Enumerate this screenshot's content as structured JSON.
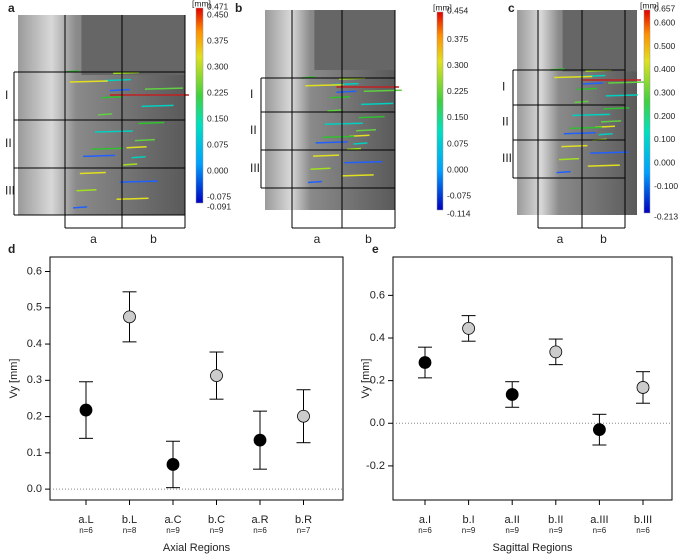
{
  "panels": [
    {
      "letter": "a",
      "unit": "[mm]",
      "colorbar": [
        "0.471",
        "0.450",
        "0.375",
        "0.300",
        "0.225",
        "0.150",
        "0.075",
        "0.000",
        "-0.075",
        "-0.091"
      ],
      "rows": [
        "I",
        "II",
        "III"
      ],
      "cols": [
        "a",
        "b"
      ]
    },
    {
      "letter": "b",
      "unit": "[mm]",
      "colorbar": [
        "0.454",
        "0.375",
        "0.300",
        "0.225",
        "0.150",
        "0.075",
        "0.000",
        "-0.075",
        "-0.114"
      ],
      "rows": [
        "I",
        "II",
        "III"
      ],
      "cols": [
        "a",
        "b"
      ]
    },
    {
      "letter": "c",
      "unit": "[mm]",
      "colorbar": [
        "0.657",
        "0.600",
        "0.500",
        "0.400",
        "0.300",
        "0.200",
        "0.100",
        "0.000",
        "-0.100",
        "-0.213"
      ],
      "rows": [
        "I",
        "II",
        "III"
      ],
      "cols": [
        "a",
        "b"
      ]
    }
  ],
  "chart_data": [
    {
      "type": "errorbar",
      "panel_label": "d",
      "xlabel": "Axial Regions",
      "ylabel": "Vy [mm]",
      "categories": [
        "a.L",
        "b.L",
        "a.C",
        "b.C",
        "a.R",
        "b.R"
      ],
      "n_labels": [
        "n=6",
        "n=8",
        "n=9",
        "n=9",
        "n=6",
        "n=7"
      ],
      "values": [
        0.218,
        0.475,
        0.068,
        0.313,
        0.135,
        0.201
      ],
      "errors": [
        0.078,
        0.069,
        0.064,
        0.065,
        0.08,
        0.073
      ],
      "colors": [
        "#000000",
        "#cccccc",
        "#000000",
        "#cccccc",
        "#000000",
        "#cccccc"
      ],
      "ylim": [
        -0.03,
        0.64
      ],
      "yticks": [
        {
          "value": 0,
          "label": "0.0"
        },
        {
          "value": 0.1,
          "label": "0.1"
        },
        {
          "value": 0.2,
          "label": "0.2"
        },
        {
          "value": 0.3,
          "label": "0.3"
        },
        {
          "value": 0.4,
          "label": "0.4"
        },
        {
          "value": 0.5,
          "label": "0.5"
        },
        {
          "value": 0.6,
          "label": "0.6"
        }
      ]
    },
    {
      "type": "errorbar",
      "panel_label": "e",
      "xlabel": "Sagittal Regions",
      "ylabel": "Vy [mm]",
      "categories": [
        "a.I",
        "b.I",
        "a.II",
        "b.II",
        "a.III",
        "b.III"
      ],
      "n_labels": [
        "n=6",
        "n=9",
        "n=9",
        "n=9",
        "n=6",
        "n=6"
      ],
      "values": [
        0.285,
        0.445,
        0.135,
        0.335,
        -0.03,
        0.168
      ],
      "errors": [
        0.072,
        0.06,
        0.06,
        0.06,
        0.072,
        0.074
      ],
      "colors": [
        "#000000",
        "#cccccc",
        "#000000",
        "#cccccc",
        "#000000",
        "#cccccc"
      ],
      "ylim": [
        -0.36,
        0.78
      ],
      "yticks": [
        {
          "value": -0.2,
          "label": "-0.2"
        },
        {
          "value": 0,
          "label": "0.0"
        },
        {
          "value": 0.2,
          "label": "0.2"
        },
        {
          "value": 0.4,
          "label": "0.4"
        },
        {
          "value": 0.6,
          "label": "0.6"
        }
      ]
    }
  ]
}
